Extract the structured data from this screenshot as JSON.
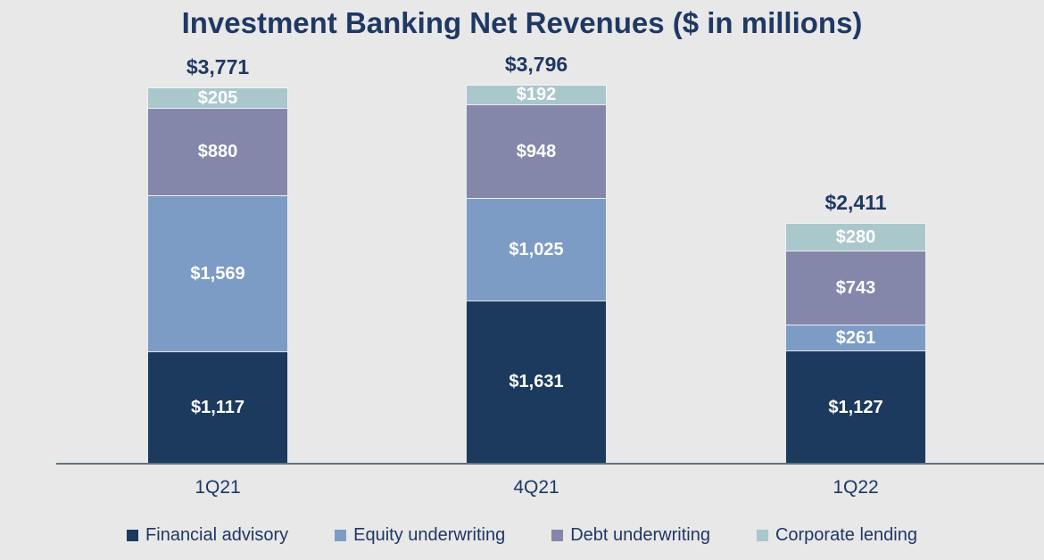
{
  "title": "Investment Banking Net Revenues ($ in millions)",
  "chart_data": {
    "type": "bar",
    "stacked": true,
    "title": "Investment Banking Net Revenues ($ in millions)",
    "categories": [
      "1Q21",
      "4Q21",
      "1Q22"
    ],
    "series": [
      {
        "name": "Financial advisory",
        "color": "#1b3a5e",
        "values": [
          1117,
          1631,
          1127
        ],
        "labels": [
          "$1,117",
          "$1,631",
          "$1,127"
        ]
      },
      {
        "name": "Equity underwriting",
        "color": "#7d9cc5",
        "values": [
          1569,
          1025,
          261
        ],
        "labels": [
          "$1,569",
          "$1,025",
          "$261"
        ]
      },
      {
        "name": "Debt underwriting",
        "color": "#8487a9",
        "values": [
          880,
          948,
          743
        ],
        "labels": [
          "$880",
          "$948",
          "$743"
        ]
      },
      {
        "name": "Corporate lending",
        "color": "#aac7cc",
        "values": [
          205,
          192,
          280
        ],
        "labels": [
          "$205",
          "$192",
          "$280"
        ]
      }
    ],
    "totals": [
      3771,
      3796,
      2411
    ],
    "total_labels": [
      "$3,771",
      "$3,796",
      "$2,411"
    ],
    "ylim": [
      0,
      4000
    ],
    "grid": false,
    "legend_position": "bottom"
  },
  "colors": {
    "background": "#e8e8e8",
    "text": "#1f3864",
    "axis": "#5d7383",
    "segment_label": "#ffffff"
  }
}
